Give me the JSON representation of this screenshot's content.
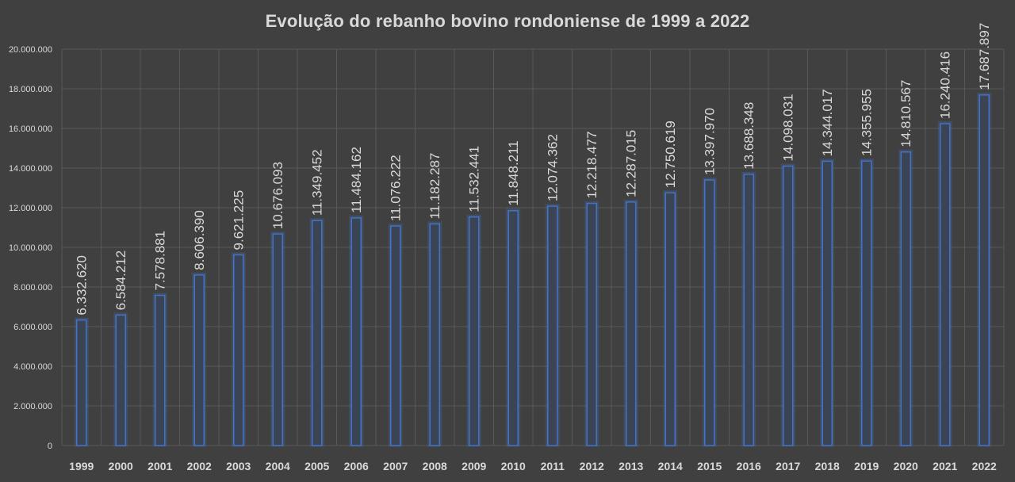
{
  "chart_data": {
    "type": "bar",
    "title": "Evolução do rebanho bovino rondoniense de 1999 a 2022",
    "xlabel": "",
    "ylabel": "",
    "categories": [
      "1999",
      "2000",
      "2001",
      "2002",
      "2003",
      "2004",
      "2005",
      "2006",
      "2007",
      "2008",
      "2009",
      "2010",
      "2011",
      "2012",
      "2013",
      "2014",
      "2015",
      "2016",
      "2017",
      "2018",
      "2019",
      "2020",
      "2021",
      "2022"
    ],
    "values": [
      6332620,
      6584212,
      7578881,
      8606390,
      9621225,
      10676093,
      11349452,
      11484162,
      11076222,
      11182287,
      11532441,
      11848211,
      12074362,
      12218477,
      12287015,
      12750619,
      13397970,
      13688348,
      14098031,
      14344017,
      14355955,
      14810567,
      16240416,
      17687897
    ],
    "data_labels": [
      "6.332.620",
      "6.584.212",
      "7.578.881",
      "8.606.390",
      "9.621.225",
      "10.676.093",
      "11.349.452",
      "11.484.162",
      "11.076.222",
      "11.182.287",
      "11.532.441",
      "11.848.211",
      "12.074.362",
      "12.218.477",
      "12.287.015",
      "12.750.619",
      "13.397.970",
      "13.688.348",
      "14.098.031",
      "14.344.017",
      "14.355.955",
      "14.810.567",
      "16.240.416",
      "17.687.897"
    ],
    "ylim": [
      0,
      20000000
    ],
    "y_ticks": [
      0,
      2000000,
      4000000,
      6000000,
      8000000,
      10000000,
      12000000,
      14000000,
      16000000,
      18000000,
      20000000
    ],
    "y_tick_labels": [
      "0",
      "2.000.000",
      "4.000.000",
      "6.000.000",
      "8.000.000",
      "10.000.000",
      "12.000.000",
      "14.000.000",
      "16.000.000",
      "18.000.000",
      "20.000.000"
    ],
    "grid": true,
    "legend": "none",
    "colors": {
      "background": "#404040",
      "bar_outline": "#4472c4",
      "bar_fill": "#3b4455",
      "grid": "#595959",
      "text": "#d9d9d9"
    }
  }
}
